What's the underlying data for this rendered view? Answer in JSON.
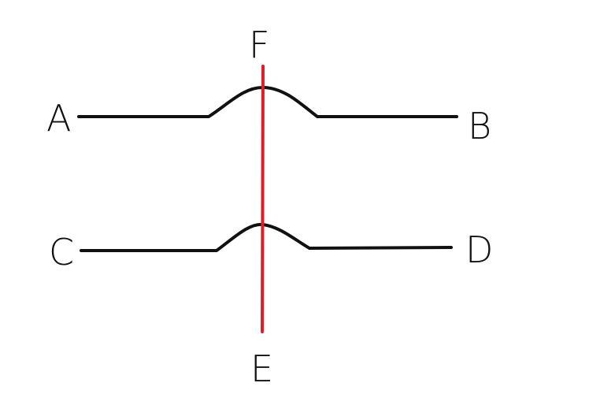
{
  "diagram": {
    "labels": {
      "a": "A",
      "b": "B",
      "c": "C",
      "d": "D",
      "e": "E",
      "f": "F"
    },
    "colors": {
      "background": "#ffffff",
      "curve": "#111111",
      "vertical_line": "#e11d2a"
    }
  }
}
